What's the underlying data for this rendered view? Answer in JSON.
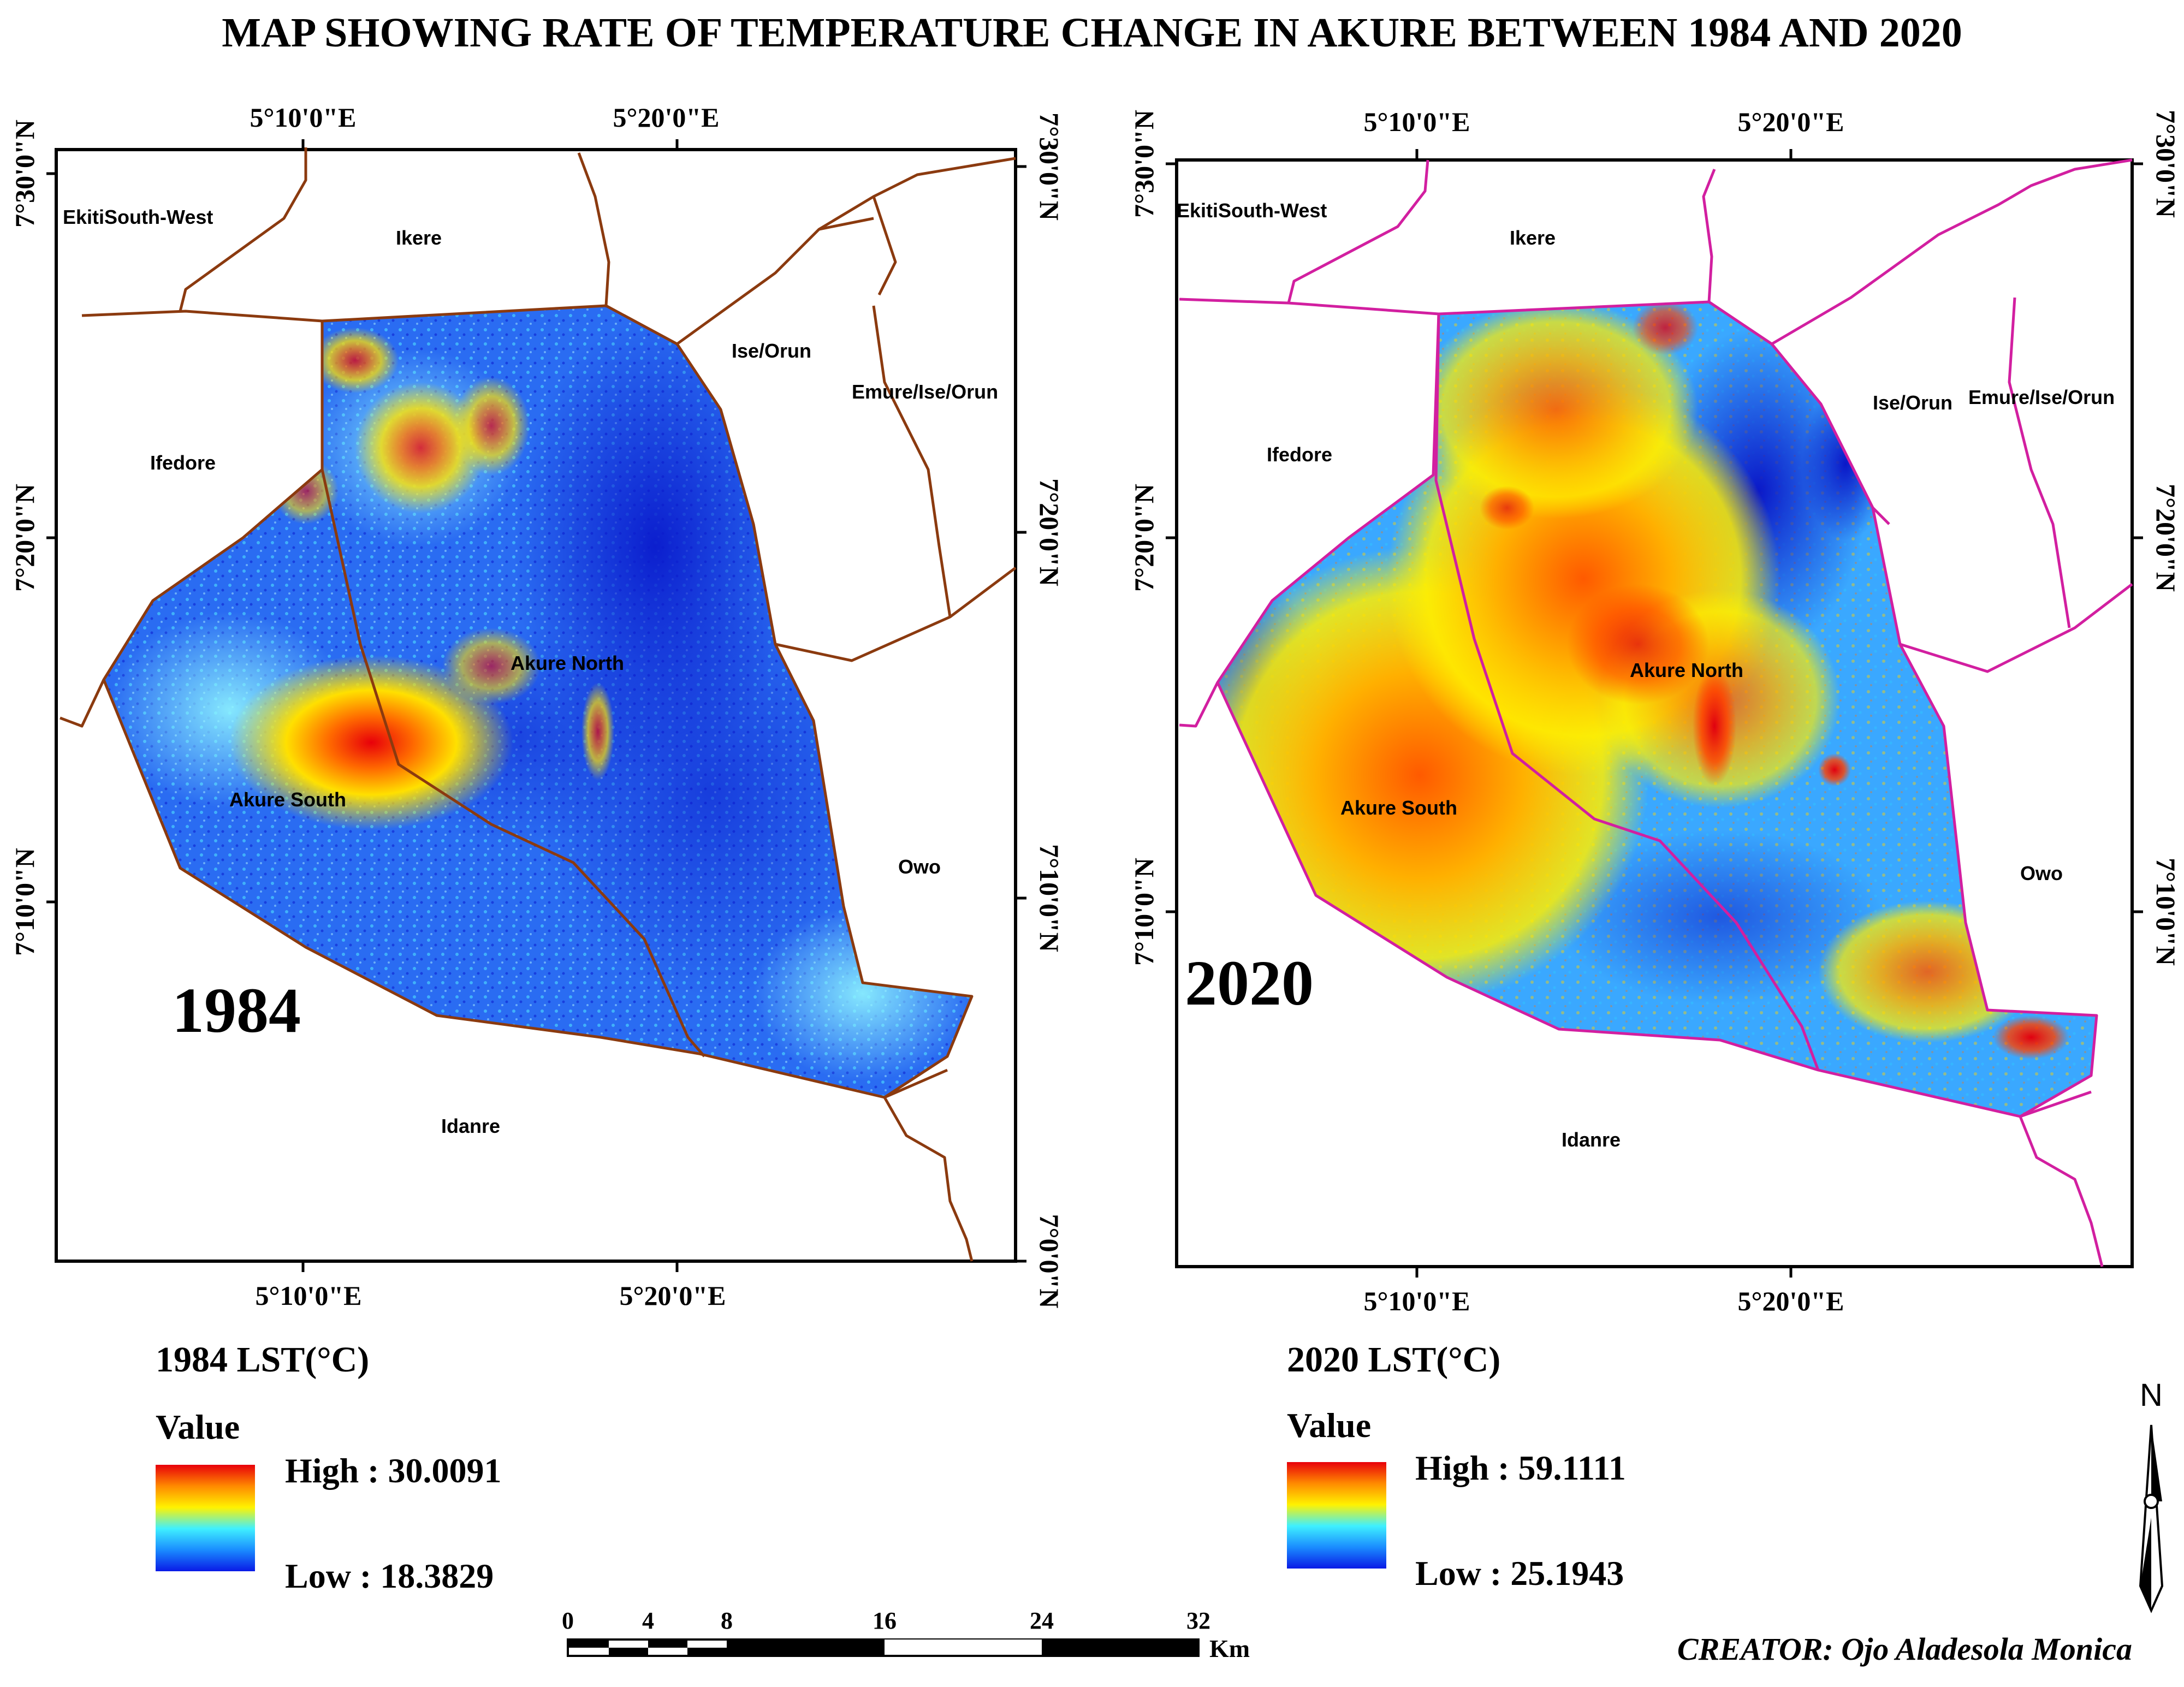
{
  "title": "MAP SHOWING RATE OF TEMPERATURE CHANGE IN AKURE BETWEEN 1984 AND 2020",
  "panels": [
    {
      "year_label": "1984",
      "boundary_color": "#8b3a0f",
      "legend": {
        "heading": "1984 LST(°C)",
        "value_label": "Value",
        "high": "High : 30.0091",
        "low": "Low : 18.3829"
      },
      "lon_ticks": [
        "5°10'0\"E",
        "5°20'0\"E"
      ],
      "lat_ticks": [
        "7°30'0\"N",
        "7°20'0\"N",
        "7°10'0\"N",
        "7°0'0\"N"
      ],
      "regions": {
        "ekiti_sw": "EkitiSouth-West",
        "ikere": "Ikere",
        "ise_orun": "Ise/Orun",
        "emure": "Emure/Ise/Orun",
        "ifedore": "Ifedore",
        "akure_north": "Akure North",
        "akure_south": "Akure South",
        "owo": "Owo",
        "idanre": "Idanre"
      }
    },
    {
      "year_label": "2020",
      "boundary_color": "#d21fa0",
      "legend": {
        "heading": "2020 LST(°C)",
        "value_label": "Value",
        "high": "High : 59.1111",
        "low": "Low : 25.1943"
      },
      "lon_ticks": [
        "5°10'0\"E",
        "5°20'0\"E"
      ],
      "lat_ticks": [
        "7°30'0\"N",
        "7°20'0\"N",
        "7°10'0\"N"
      ],
      "regions": {
        "ekiti_sw": "EkitiSouth-West",
        "ikere": "Ikere",
        "ise_orun": "Ise/Orun",
        "emure": "Emure/Ise/Orun",
        "ifedore": "Ifedore",
        "akure_north": "Akure North",
        "akure_south": "Akure South",
        "owo": "Owo",
        "idanre": "Idanre"
      }
    }
  ],
  "scale_bar": {
    "ticks": [
      "0",
      "4",
      "8",
      "16",
      "24",
      "32"
    ],
    "unit": "Km"
  },
  "north_arrow": {
    "label": "N"
  },
  "creator": "CREATOR: Ojo Aladesola Monica",
  "colors": {
    "ramp_high": "#e8000a",
    "ramp_mid": "#fff200",
    "ramp_low": "#0a1ae6"
  }
}
